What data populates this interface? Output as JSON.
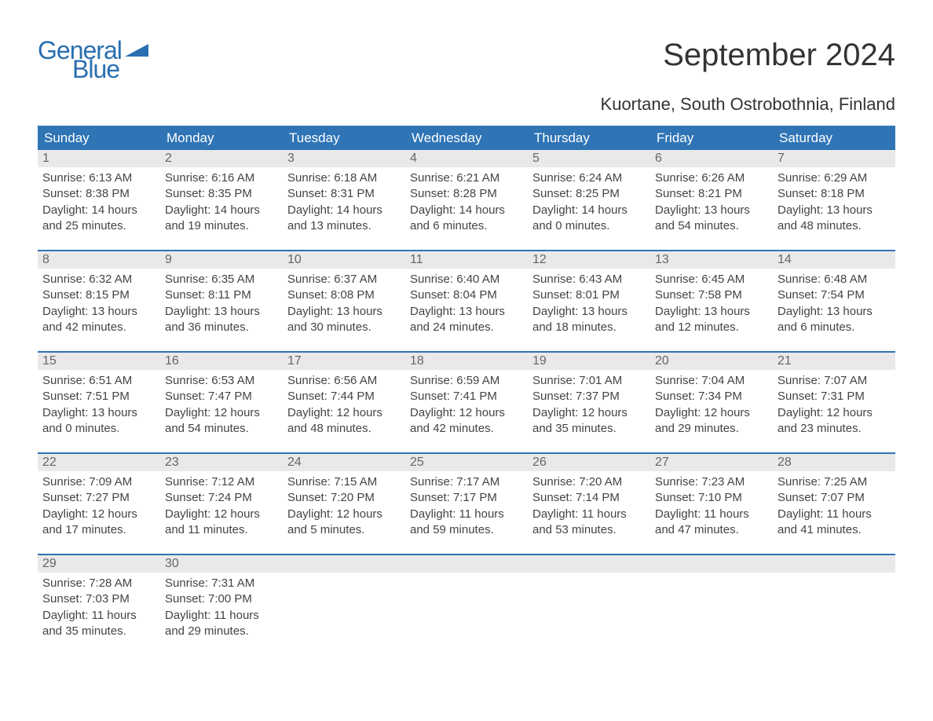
{
  "brand": {
    "general": "General",
    "blue": "Blue",
    "color": "#2a6fb0"
  },
  "title": "September 2024",
  "location": "Kuortane, South Ostrobothnia, Finland",
  "weekdays": [
    "Sunday",
    "Monday",
    "Tuesday",
    "Wednesday",
    "Thursday",
    "Friday",
    "Saturday"
  ],
  "colors": {
    "header_bg": "#2f74b5",
    "header_text": "#ffffff",
    "daynum_bg": "#e9e9e9",
    "daynum_text": "#666666",
    "body_text": "#444444",
    "week_border": "#2f74b5"
  },
  "fontsizes": {
    "title": 40,
    "subtitle": 22,
    "weekday": 17,
    "daynum": 16,
    "body": 15
  },
  "weeks": [
    [
      {
        "n": "1",
        "sr": "6:13 AM",
        "ss": "8:38 PM",
        "dl": "14 hours",
        "dm": "and 25 minutes."
      },
      {
        "n": "2",
        "sr": "6:16 AM",
        "ss": "8:35 PM",
        "dl": "14 hours",
        "dm": "and 19 minutes."
      },
      {
        "n": "3",
        "sr": "6:18 AM",
        "ss": "8:31 PM",
        "dl": "14 hours",
        "dm": "and 13 minutes."
      },
      {
        "n": "4",
        "sr": "6:21 AM",
        "ss": "8:28 PM",
        "dl": "14 hours",
        "dm": "and 6 minutes."
      },
      {
        "n": "5",
        "sr": "6:24 AM",
        "ss": "8:25 PM",
        "dl": "14 hours",
        "dm": "and 0 minutes."
      },
      {
        "n": "6",
        "sr": "6:26 AM",
        "ss": "8:21 PM",
        "dl": "13 hours",
        "dm": "and 54 minutes."
      },
      {
        "n": "7",
        "sr": "6:29 AM",
        "ss": "8:18 PM",
        "dl": "13 hours",
        "dm": "and 48 minutes."
      }
    ],
    [
      {
        "n": "8",
        "sr": "6:32 AM",
        "ss": "8:15 PM",
        "dl": "13 hours",
        "dm": "and 42 minutes."
      },
      {
        "n": "9",
        "sr": "6:35 AM",
        "ss": "8:11 PM",
        "dl": "13 hours",
        "dm": "and 36 minutes."
      },
      {
        "n": "10",
        "sr": "6:37 AM",
        "ss": "8:08 PM",
        "dl": "13 hours",
        "dm": "and 30 minutes."
      },
      {
        "n": "11",
        "sr": "6:40 AM",
        "ss": "8:04 PM",
        "dl": "13 hours",
        "dm": "and 24 minutes."
      },
      {
        "n": "12",
        "sr": "6:43 AM",
        "ss": "8:01 PM",
        "dl": "13 hours",
        "dm": "and 18 minutes."
      },
      {
        "n": "13",
        "sr": "6:45 AM",
        "ss": "7:58 PM",
        "dl": "13 hours",
        "dm": "and 12 minutes."
      },
      {
        "n": "14",
        "sr": "6:48 AM",
        "ss": "7:54 PM",
        "dl": "13 hours",
        "dm": "and 6 minutes."
      }
    ],
    [
      {
        "n": "15",
        "sr": "6:51 AM",
        "ss": "7:51 PM",
        "dl": "13 hours",
        "dm": "and 0 minutes."
      },
      {
        "n": "16",
        "sr": "6:53 AM",
        "ss": "7:47 PM",
        "dl": "12 hours",
        "dm": "and 54 minutes."
      },
      {
        "n": "17",
        "sr": "6:56 AM",
        "ss": "7:44 PM",
        "dl": "12 hours",
        "dm": "and 48 minutes."
      },
      {
        "n": "18",
        "sr": "6:59 AM",
        "ss": "7:41 PM",
        "dl": "12 hours",
        "dm": "and 42 minutes."
      },
      {
        "n": "19",
        "sr": "7:01 AM",
        "ss": "7:37 PM",
        "dl": "12 hours",
        "dm": "and 35 minutes."
      },
      {
        "n": "20",
        "sr": "7:04 AM",
        "ss": "7:34 PM",
        "dl": "12 hours",
        "dm": "and 29 minutes."
      },
      {
        "n": "21",
        "sr": "7:07 AM",
        "ss": "7:31 PM",
        "dl": "12 hours",
        "dm": "and 23 minutes."
      }
    ],
    [
      {
        "n": "22",
        "sr": "7:09 AM",
        "ss": "7:27 PM",
        "dl": "12 hours",
        "dm": "and 17 minutes."
      },
      {
        "n": "23",
        "sr": "7:12 AM",
        "ss": "7:24 PM",
        "dl": "12 hours",
        "dm": "and 11 minutes."
      },
      {
        "n": "24",
        "sr": "7:15 AM",
        "ss": "7:20 PM",
        "dl": "12 hours",
        "dm": "and 5 minutes."
      },
      {
        "n": "25",
        "sr": "7:17 AM",
        "ss": "7:17 PM",
        "dl": "11 hours",
        "dm": "and 59 minutes."
      },
      {
        "n": "26",
        "sr": "7:20 AM",
        "ss": "7:14 PM",
        "dl": "11 hours",
        "dm": "and 53 minutes."
      },
      {
        "n": "27",
        "sr": "7:23 AM",
        "ss": "7:10 PM",
        "dl": "11 hours",
        "dm": "and 47 minutes."
      },
      {
        "n": "28",
        "sr": "7:25 AM",
        "ss": "7:07 PM",
        "dl": "11 hours",
        "dm": "and 41 minutes."
      }
    ],
    [
      {
        "n": "29",
        "sr": "7:28 AM",
        "ss": "7:03 PM",
        "dl": "11 hours",
        "dm": "and 35 minutes."
      },
      {
        "n": "30",
        "sr": "7:31 AM",
        "ss": "7:00 PM",
        "dl": "11 hours",
        "dm": "and 29 minutes."
      },
      {
        "empty": true
      },
      {
        "empty": true
      },
      {
        "empty": true
      },
      {
        "empty": true
      },
      {
        "empty": true
      }
    ]
  ],
  "labels": {
    "sunrise": "Sunrise: ",
    "sunset": "Sunset: ",
    "daylight": "Daylight: "
  }
}
